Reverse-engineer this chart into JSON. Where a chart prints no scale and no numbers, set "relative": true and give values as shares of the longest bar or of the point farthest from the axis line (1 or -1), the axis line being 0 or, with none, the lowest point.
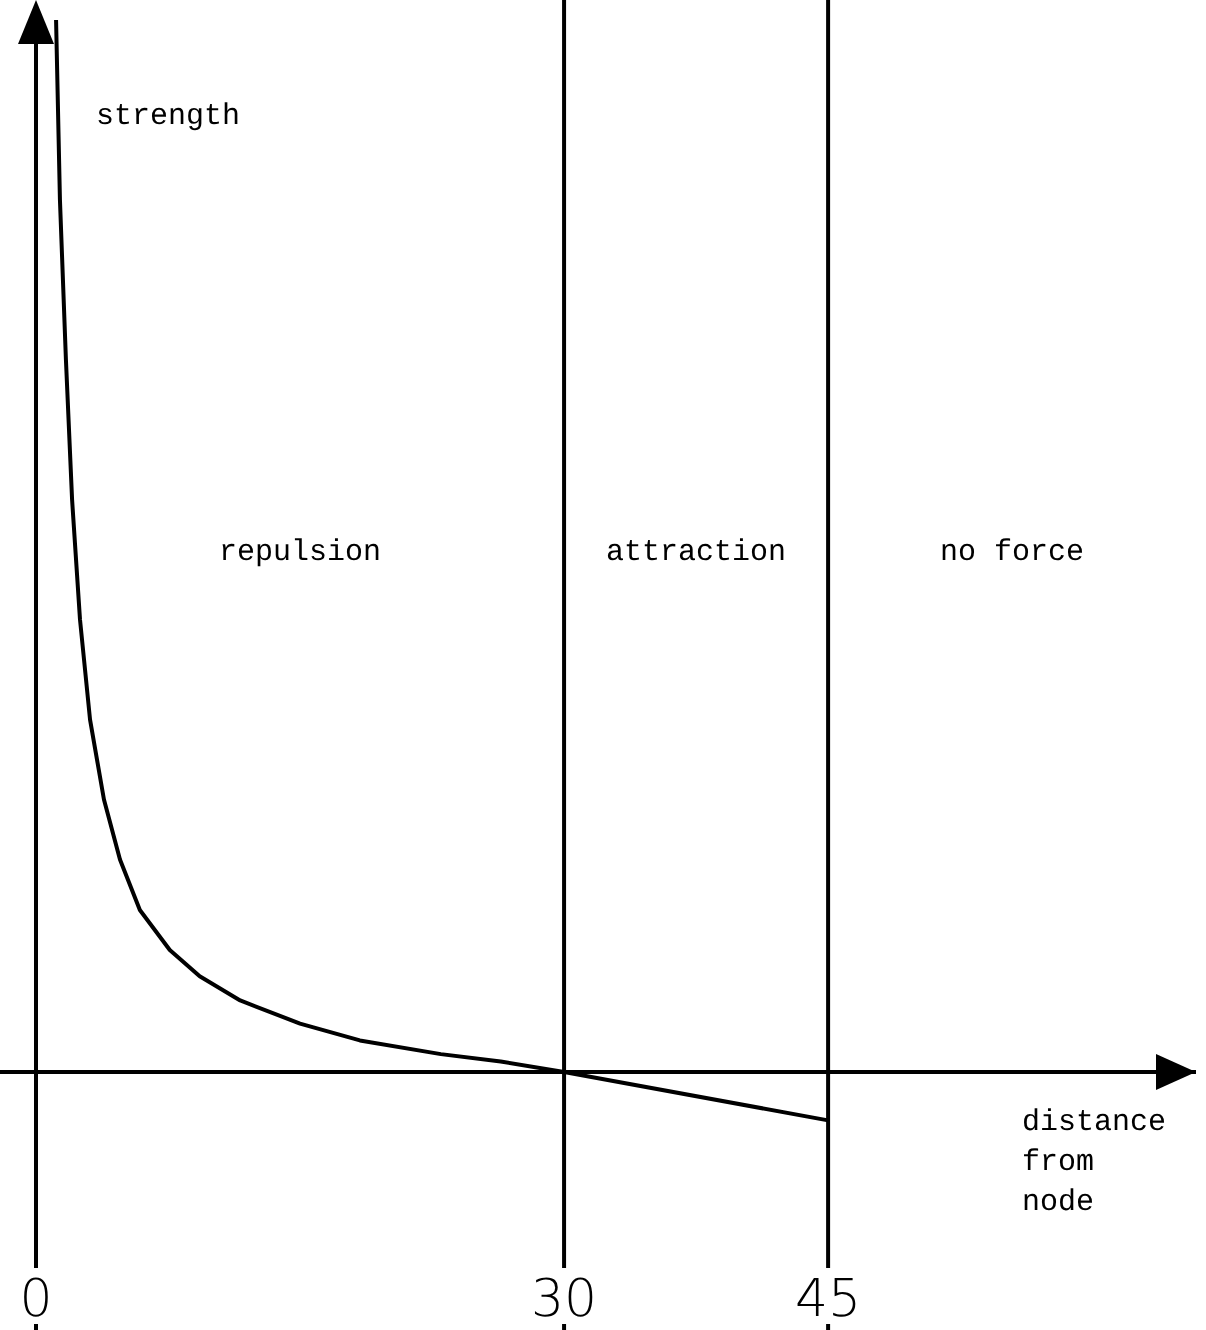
{
  "chart_data": {
    "type": "line",
    "relative": true,
    "ylabel": "strength",
    "xlabel": "distance from node",
    "x": [
      1.14,
      1.36,
      1.7,
      2.05,
      2.5,
      3.07,
      3.86,
      4.77,
      5.9,
      7.6,
      9.3,
      11.6,
      15,
      18.4,
      23,
      26.4,
      30,
      45
    ],
    "values": [
      1,
      0.829,
      0.677,
      0.544,
      0.43,
      0.335,
      0.259,
      0.202,
      0.154,
      0.116,
      0.091,
      0.068,
      0.046,
      0.03,
      0.017,
      0.01,
      0,
      -0.046
    ],
    "color": "#000000",
    "xlim": [
      0,
      65.9
    ],
    "xticks": [
      0,
      30,
      45
    ],
    "ref_lines": [
      {
        "axis": "x",
        "value": 30,
        "color": "#000000"
      },
      {
        "axis": "x",
        "value": 45,
        "color": "#000000"
      }
    ],
    "annotations": [
      "repulsion",
      "attraction",
      "no force"
    ],
    "grid": false,
    "marker": "none",
    "line_style": "solid"
  }
}
